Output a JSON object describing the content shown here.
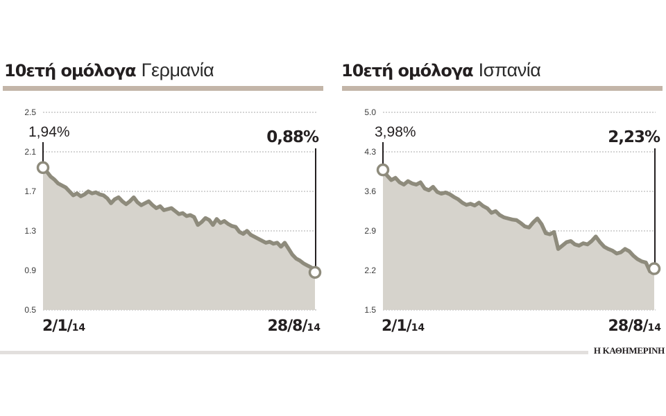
{
  "charts": [
    {
      "id": "germany",
      "title_bold": "10ετή ομόλογα",
      "title_light": "Γερμανία",
      "start_label": "1,94%",
      "end_label": "0,88%",
      "start_date": {
        "main": "2/1/",
        "year": "14"
      },
      "end_date": {
        "main": "28/8/",
        "year": "14"
      }
    },
    {
      "id": "spain",
      "title_bold": "10ετή ομόλογα",
      "title_light": "Ισπανία",
      "start_label": "3,98%",
      "end_label": "2,23%",
      "start_date": {
        "main": "2/1/",
        "year": "14"
      },
      "end_date": {
        "main": "28/8/",
        "year": "14"
      }
    }
  ],
  "source": "Η ΚΑΘΗΜΕΡΙΝΗ",
  "colors": {
    "title_bar": "#c3b5a8",
    "area_fill": "#d6d3cc",
    "line": "#8e8b7c",
    "grid": "#a9a9a9",
    "text": "#231f20",
    "footer_bar": "#e2dfdd"
  },
  "chart_data": [
    {
      "type": "area",
      "title": "10ετή ομόλογα Γερμανία",
      "xlabel": "",
      "ylabel": "",
      "x_range": [
        "2/1/14",
        "28/8/14"
      ],
      "yticks": [
        2.5,
        2.1,
        1.7,
        1.3,
        0.9,
        0.5
      ],
      "ylim": [
        0.5,
        2.5
      ],
      "grid": true,
      "annotations": [
        {
          "x": "2/1/14",
          "label": "1,94%"
        },
        {
          "x": "28/8/14",
          "label": "0,88%"
        }
      ],
      "values": [
        1.94,
        1.9,
        1.85,
        1.82,
        1.78,
        1.76,
        1.74,
        1.7,
        1.66,
        1.68,
        1.65,
        1.67,
        1.7,
        1.68,
        1.69,
        1.67,
        1.66,
        1.63,
        1.58,
        1.62,
        1.64,
        1.6,
        1.57,
        1.6,
        1.64,
        1.59,
        1.56,
        1.58,
        1.6,
        1.56,
        1.53,
        1.55,
        1.51,
        1.52,
        1.53,
        1.5,
        1.47,
        1.48,
        1.45,
        1.46,
        1.44,
        1.36,
        1.39,
        1.43,
        1.41,
        1.36,
        1.42,
        1.38,
        1.4,
        1.37,
        1.35,
        1.34,
        1.29,
        1.27,
        1.3,
        1.26,
        1.24,
        1.22,
        1.2,
        1.18,
        1.19,
        1.17,
        1.18,
        1.14,
        1.18,
        1.12,
        1.06,
        1.02,
        1.0,
        0.97,
        0.95,
        0.93,
        0.88
      ]
    },
    {
      "type": "area",
      "title": "10ετή ομόλογα Ισπανία",
      "xlabel": "",
      "ylabel": "",
      "x_range": [
        "2/1/14",
        "28/8/14"
      ],
      "yticks": [
        5.0,
        4.3,
        3.6,
        2.9,
        2.2,
        1.5
      ],
      "ylim": [
        1.5,
        5.0
      ],
      "grid": true,
      "annotations": [
        {
          "x": "2/1/14",
          "label": "3,98%"
        },
        {
          "x": "28/8/14",
          "label": "2,23%"
        }
      ],
      "values": [
        3.98,
        3.88,
        3.8,
        3.84,
        3.76,
        3.72,
        3.78,
        3.74,
        3.72,
        3.76,
        3.65,
        3.62,
        3.68,
        3.59,
        3.56,
        3.58,
        3.55,
        3.5,
        3.46,
        3.4,
        3.36,
        3.38,
        3.35,
        3.4,
        3.34,
        3.3,
        3.22,
        3.25,
        3.18,
        3.14,
        3.12,
        3.1,
        3.09,
        3.04,
        2.98,
        2.96,
        3.05,
        3.12,
        3.02,
        2.86,
        2.84,
        2.88,
        2.58,
        2.64,
        2.7,
        2.72,
        2.66,
        2.64,
        2.68,
        2.66,
        2.72,
        2.8,
        2.7,
        2.62,
        2.58,
        2.55,
        2.5,
        2.52,
        2.58,
        2.54,
        2.46,
        2.4,
        2.36,
        2.34,
        2.18,
        2.23
      ]
    }
  ]
}
